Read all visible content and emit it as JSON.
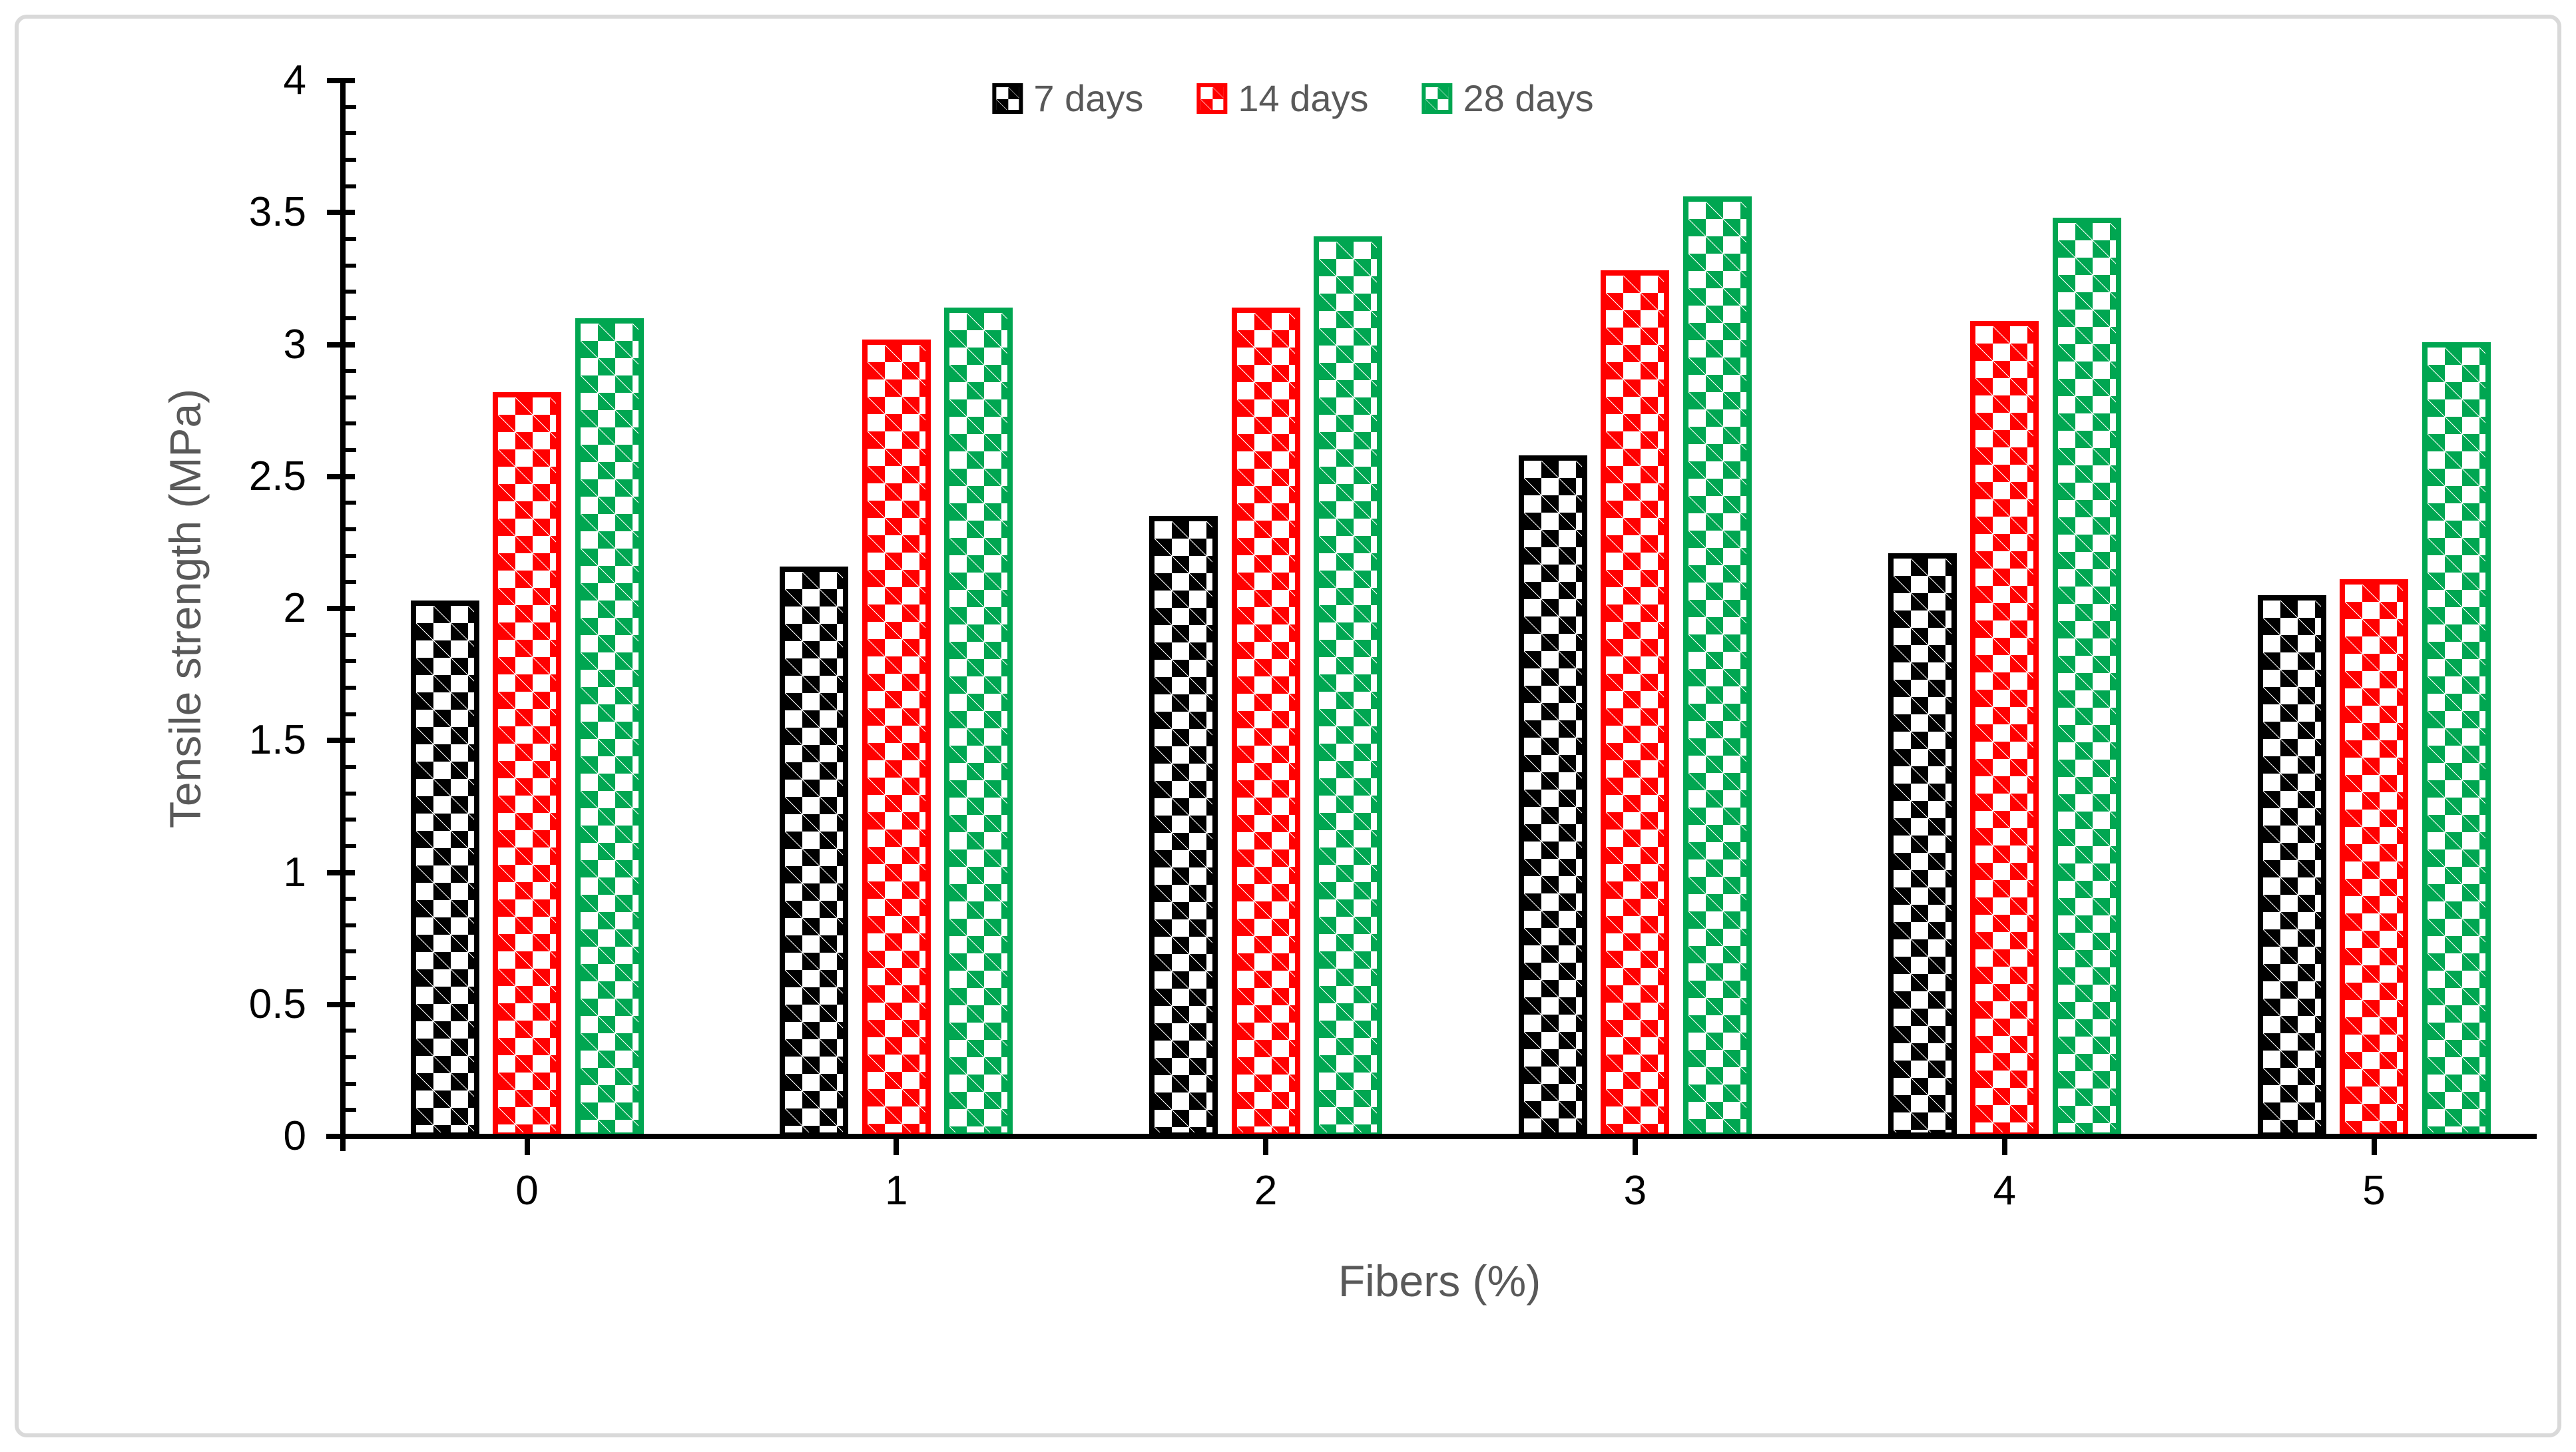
{
  "figure": {
    "background_color": "#ffffff",
    "border_color": "#d9d9d9"
  },
  "chart_data": {
    "type": "bar",
    "title": "",
    "categories": [
      "0",
      "1",
      "2",
      "3",
      "4",
      "5"
    ],
    "series": [
      {
        "name": "7 days",
        "color": "#000000",
        "pattern": "diagonal-checkerboard",
        "values": [
          2.03,
          2.16,
          2.35,
          2.58,
          2.21,
          2.05
        ]
      },
      {
        "name": "14 days",
        "color": "#ff0000",
        "pattern": "diagonal-checkerboard",
        "values": [
          2.82,
          3.02,
          3.14,
          3.28,
          3.09,
          2.11
        ]
      },
      {
        "name": "28 days",
        "color": "#00a651",
        "pattern": "diagonal-checkerboard",
        "values": [
          3.1,
          3.14,
          3.41,
          3.56,
          3.48,
          3.01
        ]
      }
    ],
    "xlabel": "Fibers (%)",
    "ylabel": "Tensile strength (MPa)",
    "ylim": [
      0,
      4
    ],
    "y_major_step": 0.5,
    "y_minor_step": 0.1,
    "y_tick_labels": [
      "0",
      "0.5",
      "1",
      "1.5",
      "2",
      "2.5",
      "3",
      "3.5",
      "4"
    ],
    "legend_position": "top-center",
    "grid": "off",
    "axis_color": "#000000",
    "tick_label_color": "#000000",
    "axis_title_color": "#595959",
    "legend_text_color": "#595959"
  }
}
